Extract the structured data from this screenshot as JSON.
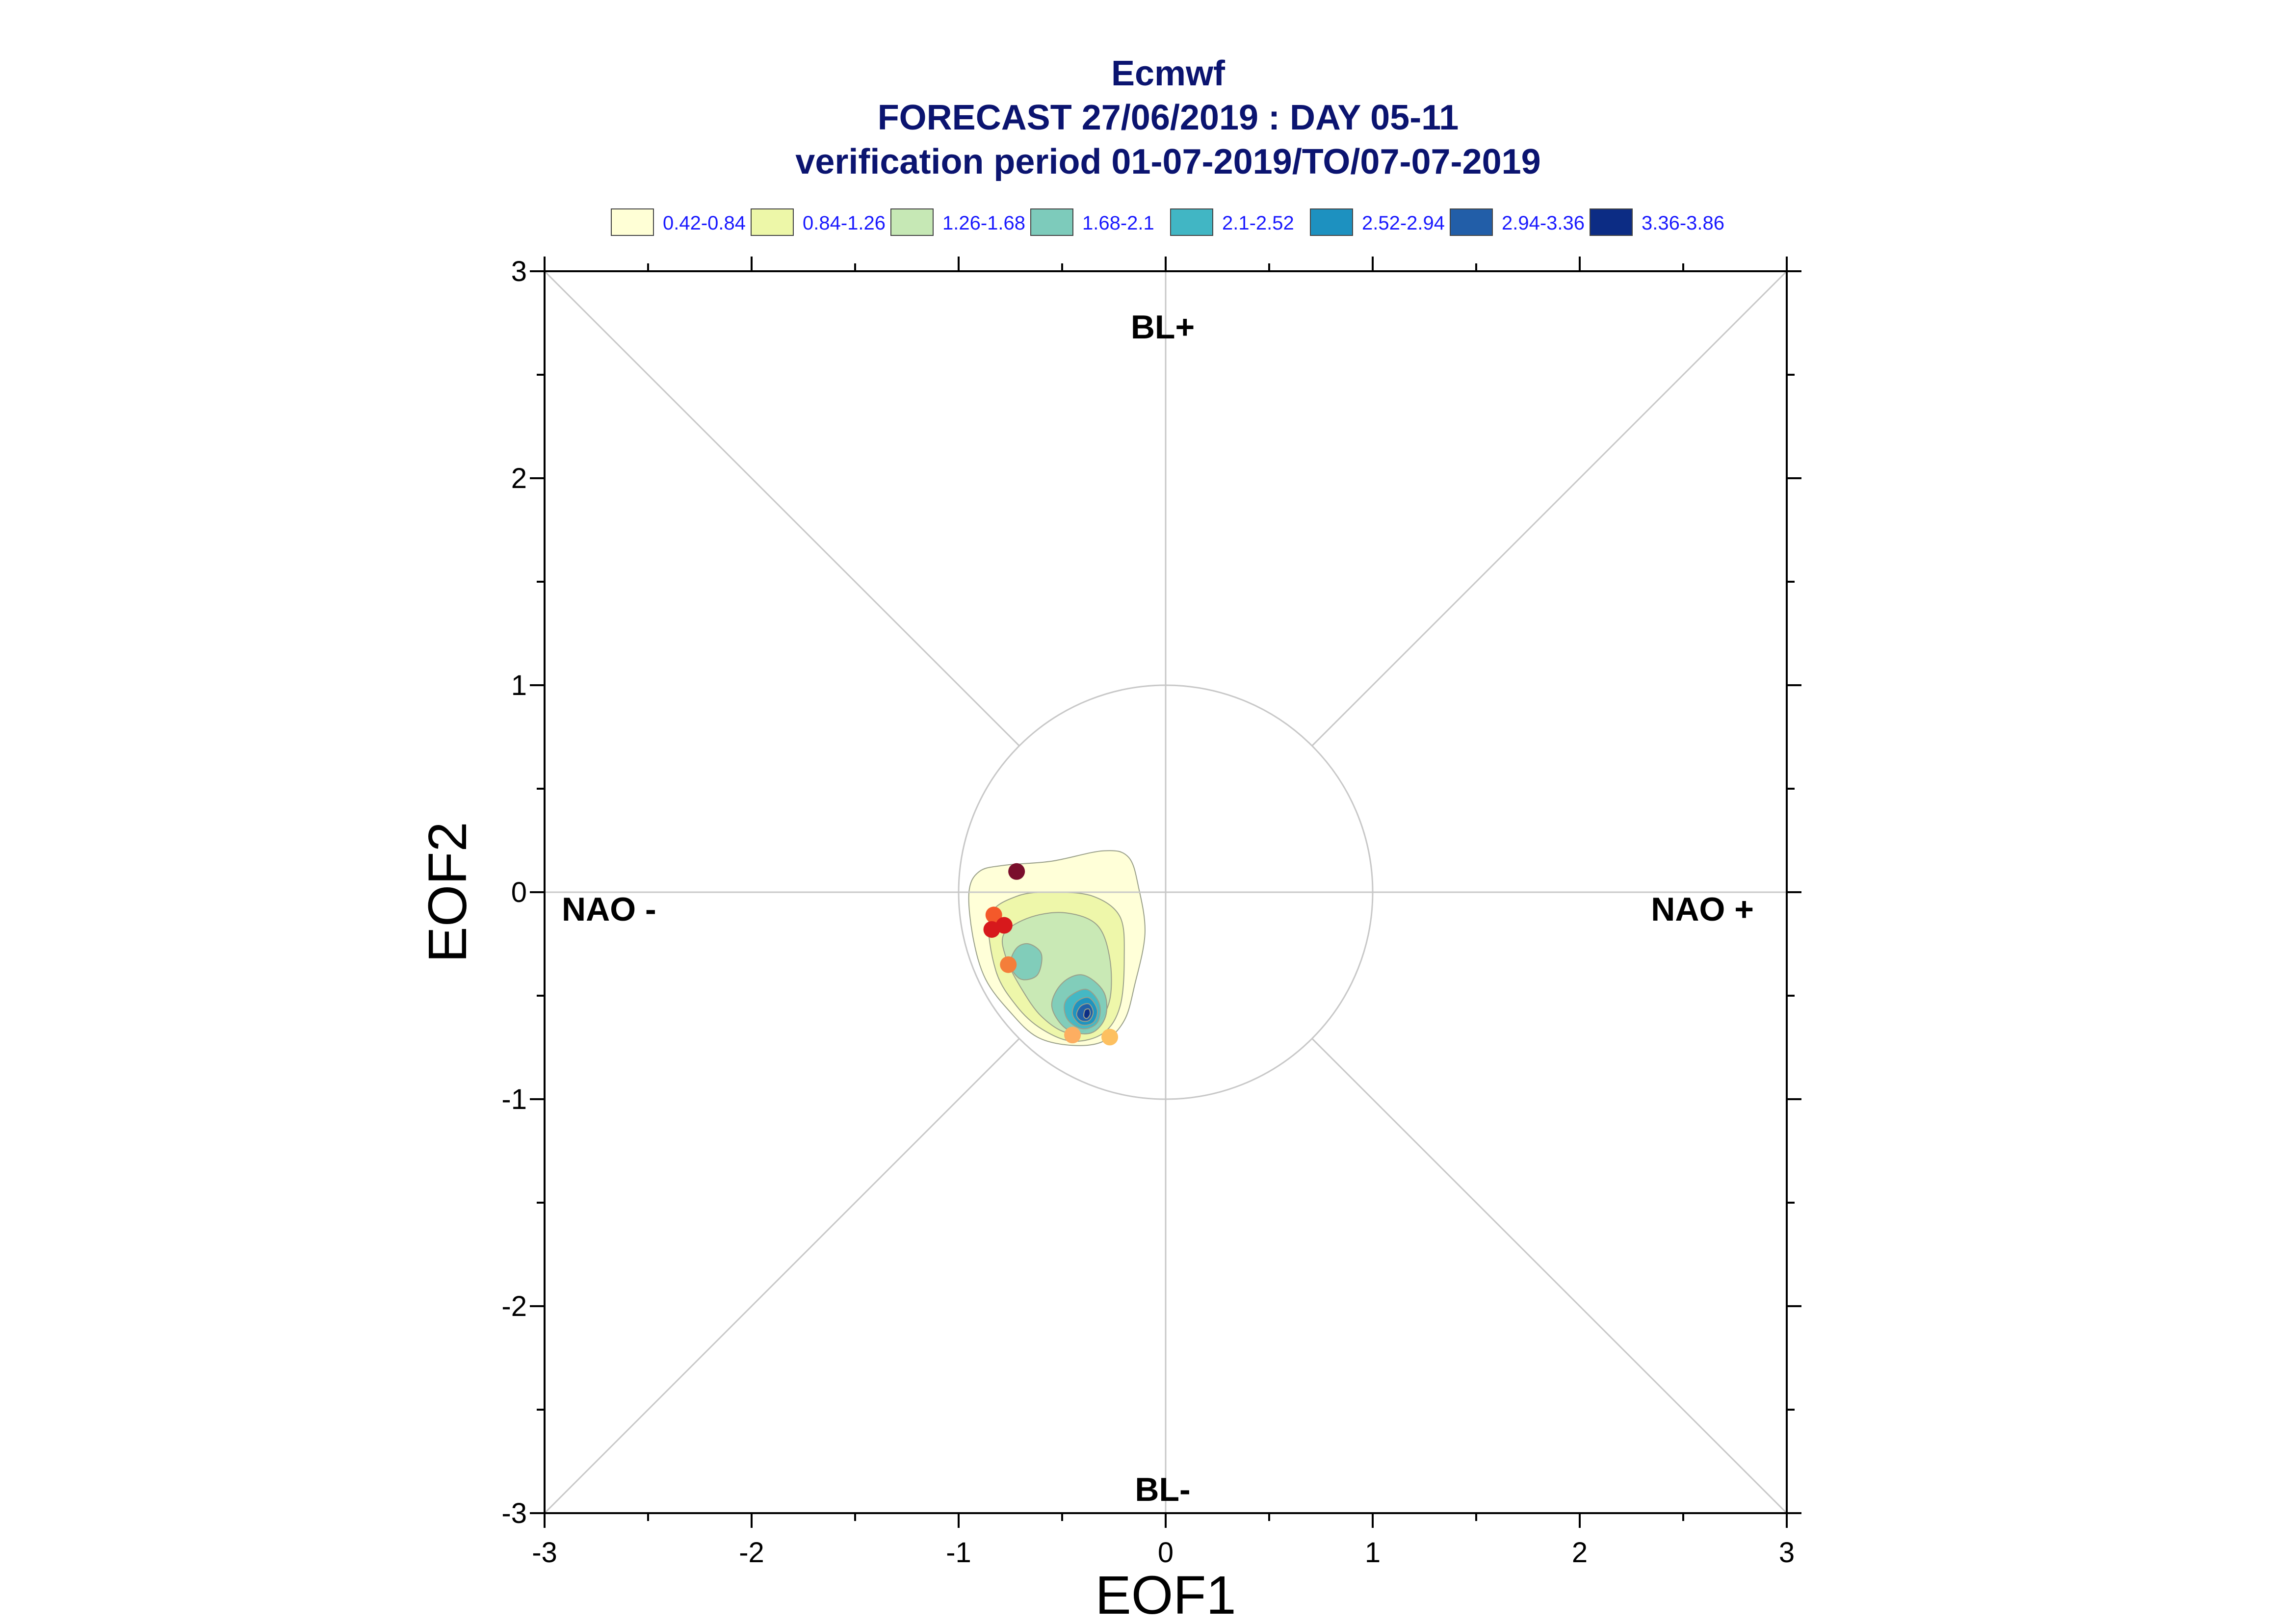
{
  "title": {
    "line1": "Ecmwf",
    "line2": "FORECAST 27/06/2019 : DAY 05-11",
    "line3": "verification period 01-07-2019/TO/07-07-2019"
  },
  "legend": [
    {
      "label": "0.42-0.84",
      "color": "#ffffd6"
    },
    {
      "label": "0.84-1.26",
      "color": "#edf7a8"
    },
    {
      "label": "1.26-1.68",
      "color": "#c6e8b5"
    },
    {
      "label": "1.68-2.1",
      "color": "#7dcbbb"
    },
    {
      "label": "2.1-2.52",
      "color": "#41b6c4"
    },
    {
      "label": "2.52-2.94",
      "color": "#1d91c0"
    },
    {
      "label": "2.94-3.36",
      "color": "#225ea8"
    },
    {
      "label": "3.36-3.86",
      "color": "#0c2c84"
    }
  ],
  "regime_labels": {
    "top": "BL+",
    "bottom": "BL-",
    "left": "NAO -",
    "right": "NAO +"
  },
  "chart_data": {
    "type": "scatter",
    "xlabel": "EOF1",
    "ylabel": "EOF2",
    "xlim": [
      -3,
      3
    ],
    "ylim": [
      -3,
      3
    ],
    "x_ticks": [
      "-3",
      "-2",
      "-1",
      "0",
      "1",
      "2",
      "3"
    ],
    "y_ticks": [
      "-3",
      "-2",
      "-1",
      "0",
      "1",
      "2",
      "3"
    ],
    "unit_circle_radius": 1,
    "density_levels": [
      {
        "range": "0.42-0.84",
        "color": "#ffffd6",
        "contour": [
          [
            -0.95,
            0.0
          ],
          [
            -0.9,
            0.1
          ],
          [
            -0.78,
            0.13
          ],
          [
            -0.55,
            0.15
          ],
          [
            -0.3,
            0.2
          ],
          [
            -0.18,
            0.17
          ],
          [
            -0.13,
            0.02
          ],
          [
            -0.1,
            -0.2
          ],
          [
            -0.15,
            -0.45
          ],
          [
            -0.2,
            -0.62
          ],
          [
            -0.3,
            -0.72
          ],
          [
            -0.45,
            -0.74
          ],
          [
            -0.62,
            -0.7
          ],
          [
            -0.75,
            -0.58
          ],
          [
            -0.87,
            -0.42
          ],
          [
            -0.93,
            -0.22
          ]
        ]
      },
      {
        "range": "0.84-1.26",
        "color": "#edf7a8",
        "contour": [
          [
            -0.85,
            -0.12
          ],
          [
            -0.72,
            -0.02
          ],
          [
            -0.55,
            0.0
          ],
          [
            -0.35,
            -0.02
          ],
          [
            -0.22,
            -0.12
          ],
          [
            -0.2,
            -0.32
          ],
          [
            -0.22,
            -0.55
          ],
          [
            -0.3,
            -0.68
          ],
          [
            -0.45,
            -0.72
          ],
          [
            -0.6,
            -0.66
          ],
          [
            -0.72,
            -0.55
          ],
          [
            -0.82,
            -0.38
          ]
        ]
      },
      {
        "range": "1.26-1.68",
        "color": "#c6e8b5",
        "contour": [
          [
            -0.78,
            -0.2
          ],
          [
            -0.65,
            -0.12
          ],
          [
            -0.48,
            -0.1
          ],
          [
            -0.33,
            -0.16
          ],
          [
            -0.27,
            -0.32
          ],
          [
            -0.27,
            -0.52
          ],
          [
            -0.34,
            -0.64
          ],
          [
            -0.47,
            -0.68
          ],
          [
            -0.6,
            -0.6
          ],
          [
            -0.7,
            -0.46
          ],
          [
            -0.77,
            -0.32
          ]
        ]
      },
      {
        "range": "1.68-2.1",
        "color": "#7dcbbb",
        "contour": [
          [
            -0.5,
            -0.44
          ],
          [
            -0.4,
            -0.4
          ],
          [
            -0.3,
            -0.48
          ],
          [
            -0.29,
            -0.6
          ],
          [
            -0.36,
            -0.68
          ],
          [
            -0.48,
            -0.66
          ],
          [
            -0.55,
            -0.55
          ]
        ]
      },
      {
        "range": "1.68-2.1",
        "color": "#7dcbbb",
        "contour": [
          [
            -0.72,
            -0.27
          ],
          [
            -0.66,
            -0.25
          ],
          [
            -0.6,
            -0.3
          ],
          [
            -0.62,
            -0.4
          ],
          [
            -0.7,
            -0.42
          ],
          [
            -0.75,
            -0.35
          ]
        ]
      },
      {
        "range": "2.1-2.52",
        "color": "#41b6c4",
        "contour": [
          [
            -0.46,
            -0.5
          ],
          [
            -0.38,
            -0.47
          ],
          [
            -0.32,
            -0.54
          ],
          [
            -0.33,
            -0.63
          ],
          [
            -0.4,
            -0.66
          ],
          [
            -0.47,
            -0.62
          ],
          [
            -0.49,
            -0.55
          ]
        ]
      },
      {
        "range": "2.52-2.94",
        "color": "#1d91c0",
        "contour": [
          [
            -0.43,
            -0.53
          ],
          [
            -0.37,
            -0.51
          ],
          [
            -0.33,
            -0.57
          ],
          [
            -0.35,
            -0.63
          ],
          [
            -0.41,
            -0.64
          ],
          [
            -0.45,
            -0.59
          ]
        ]
      },
      {
        "range": "2.94-3.36",
        "color": "#225ea8",
        "contour": [
          [
            -0.41,
            -0.55
          ],
          [
            -0.37,
            -0.54
          ],
          [
            -0.35,
            -0.58
          ],
          [
            -0.37,
            -0.62
          ],
          [
            -0.41,
            -0.62
          ],
          [
            -0.43,
            -0.59
          ]
        ]
      },
      {
        "range": "3.36-3.86",
        "color": "#0c2c84",
        "contour": [
          [
            -0.39,
            -0.57
          ],
          [
            -0.37,
            -0.565
          ],
          [
            -0.365,
            -0.59
          ],
          [
            -0.38,
            -0.61
          ],
          [
            -0.395,
            -0.6
          ]
        ]
      }
    ],
    "points": [
      {
        "x": -0.72,
        "y": 0.1,
        "color": "#7a0f2c"
      },
      {
        "x": -0.83,
        "y": -0.11,
        "color": "#f4592a"
      },
      {
        "x": -0.84,
        "y": -0.18,
        "color": "#d7191c"
      },
      {
        "x": -0.78,
        "y": -0.16,
        "color": "#d7191c"
      },
      {
        "x": -0.76,
        "y": -0.35,
        "color": "#f47e3a"
      },
      {
        "x": -0.45,
        "y": -0.69,
        "color": "#fdae61"
      },
      {
        "x": -0.27,
        "y": -0.7,
        "color": "#fdc060"
      }
    ],
    "grid": "diagonals and axes through origin",
    "legend_position": "top"
  }
}
